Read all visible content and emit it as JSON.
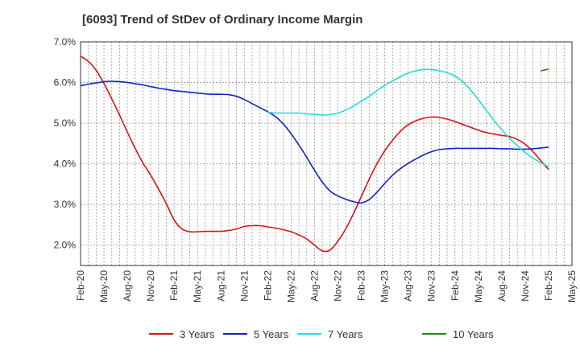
{
  "chart_data": {
    "type": "line",
    "title": "[6093]  Trend of StDev of Ordinary Income Margin",
    "xlabel": "",
    "ylabel": "",
    "x_tick_labels": [
      "Feb-20",
      "May-20",
      "Aug-20",
      "Nov-20",
      "Feb-21",
      "May-21",
      "Aug-21",
      "Nov-21",
      "Feb-22",
      "May-22",
      "Aug-22",
      "Nov-22",
      "Feb-23",
      "May-23",
      "Aug-23",
      "Nov-23",
      "Feb-24",
      "May-24",
      "Aug-24",
      "Nov-24",
      "Feb-25",
      "May-25"
    ],
    "y_tick_labels": [
      "2.0%",
      "3.0%",
      "4.0%",
      "5.0%",
      "6.0%",
      "7.0%"
    ],
    "y_ticks": [
      2.0,
      3.0,
      4.0,
      5.0,
      6.0,
      7.0
    ],
    "ylim": [
      1.5,
      7.0
    ],
    "grid": true,
    "legend_position": "bottom",
    "series": [
      {
        "name": "3 Years",
        "color": "#dd1111",
        "points": [
          [
            "2020-02",
            6.65
          ],
          [
            "2020-03",
            6.52
          ],
          [
            "2020-04",
            6.3
          ],
          [
            "2020-05",
            5.98
          ],
          [
            "2020-06",
            5.6
          ],
          [
            "2020-07",
            5.2
          ],
          [
            "2020-08",
            4.78
          ],
          [
            "2020-09",
            4.38
          ],
          [
            "2020-10",
            4.02
          ],
          [
            "2020-11",
            3.72
          ],
          [
            "2020-12",
            3.38
          ],
          [
            "2021-01",
            3.02
          ],
          [
            "2021-02",
            2.62
          ],
          [
            "2021-03",
            2.4
          ],
          [
            "2021-04",
            2.33
          ],
          [
            "2021-05",
            2.33
          ],
          [
            "2021-06",
            2.34
          ],
          [
            "2021-07",
            2.34
          ],
          [
            "2021-08",
            2.34
          ],
          [
            "2021-09",
            2.36
          ],
          [
            "2021-10",
            2.4
          ],
          [
            "2021-11",
            2.46
          ],
          [
            "2021-12",
            2.48
          ],
          [
            "2022-01",
            2.48
          ],
          [
            "2022-02",
            2.45
          ],
          [
            "2022-03",
            2.42
          ],
          [
            "2022-04",
            2.38
          ],
          [
            "2022-05",
            2.33
          ],
          [
            "2022-06",
            2.25
          ],
          [
            "2022-07",
            2.15
          ],
          [
            "2022-08",
            2.0
          ],
          [
            "2022-09",
            1.86
          ],
          [
            "2022-10",
            1.88
          ],
          [
            "2022-11",
            2.1
          ],
          [
            "2022-12",
            2.4
          ],
          [
            "2023-01",
            2.78
          ],
          [
            "2023-02",
            3.2
          ],
          [
            "2023-03",
            3.62
          ],
          [
            "2023-04",
            4.0
          ],
          [
            "2023-05",
            4.32
          ],
          [
            "2023-06",
            4.58
          ],
          [
            "2023-07",
            4.8
          ],
          [
            "2023-08",
            4.96
          ],
          [
            "2023-09",
            5.06
          ],
          [
            "2023-10",
            5.12
          ],
          [
            "2023-11",
            5.15
          ],
          [
            "2023-12",
            5.14
          ],
          [
            "2024-01",
            5.1
          ],
          [
            "2024-02",
            5.04
          ],
          [
            "2024-03",
            4.97
          ],
          [
            "2024-04",
            4.9
          ],
          [
            "2024-05",
            4.83
          ],
          [
            "2024-06",
            4.77
          ],
          [
            "2024-07",
            4.73
          ],
          [
            "2024-08",
            4.7
          ],
          [
            "2024-09",
            4.67
          ],
          [
            "2024-10",
            4.6
          ],
          [
            "2024-11",
            4.48
          ],
          [
            "2024-12",
            4.3
          ],
          [
            "2025-01",
            4.08
          ],
          [
            "2025-02",
            3.86
          ]
        ]
      },
      {
        "name": "5 Years",
        "color": "#1122cc",
        "points": [
          [
            "2020-02",
            5.92
          ],
          [
            "2020-03",
            5.96
          ],
          [
            "2020-04",
            5.99
          ],
          [
            "2020-05",
            6.02
          ],
          [
            "2020-06",
            6.03
          ],
          [
            "2020-07",
            6.02
          ],
          [
            "2020-08",
            6.0
          ],
          [
            "2020-09",
            5.97
          ],
          [
            "2020-10",
            5.94
          ],
          [
            "2020-11",
            5.9
          ],
          [
            "2020-12",
            5.86
          ],
          [
            "2021-01",
            5.83
          ],
          [
            "2021-02",
            5.8
          ],
          [
            "2021-03",
            5.78
          ],
          [
            "2021-04",
            5.76
          ],
          [
            "2021-05",
            5.74
          ],
          [
            "2021-06",
            5.72
          ],
          [
            "2021-07",
            5.71
          ],
          [
            "2021-08",
            5.71
          ],
          [
            "2021-09",
            5.7
          ],
          [
            "2021-10",
            5.66
          ],
          [
            "2021-11",
            5.58
          ],
          [
            "2021-12",
            5.48
          ],
          [
            "2022-01",
            5.38
          ],
          [
            "2022-02",
            5.28
          ],
          [
            "2022-03",
            5.16
          ],
          [
            "2022-04",
            4.98
          ],
          [
            "2022-05",
            4.74
          ],
          [
            "2022-06",
            4.46
          ],
          [
            "2022-07",
            4.16
          ],
          [
            "2022-08",
            3.84
          ],
          [
            "2022-09",
            3.55
          ],
          [
            "2022-10",
            3.33
          ],
          [
            "2022-11",
            3.21
          ],
          [
            "2022-12",
            3.13
          ],
          [
            "2023-01",
            3.07
          ],
          [
            "2023-02",
            3.04
          ],
          [
            "2023-03",
            3.12
          ],
          [
            "2023-04",
            3.3
          ],
          [
            "2023-05",
            3.52
          ],
          [
            "2023-06",
            3.72
          ],
          [
            "2023-07",
            3.88
          ],
          [
            "2023-08",
            4.01
          ],
          [
            "2023-09",
            4.12
          ],
          [
            "2023-10",
            4.22
          ],
          [
            "2023-11",
            4.3
          ],
          [
            "2023-12",
            4.35
          ],
          [
            "2024-01",
            4.37
          ],
          [
            "2024-02",
            4.38
          ],
          [
            "2024-03",
            4.38
          ],
          [
            "2024-04",
            4.38
          ],
          [
            "2024-05",
            4.38
          ],
          [
            "2024-06",
            4.38
          ],
          [
            "2024-07",
            4.38
          ],
          [
            "2024-08",
            4.37
          ],
          [
            "2024-09",
            4.37
          ],
          [
            "2024-10",
            4.36
          ],
          [
            "2024-11",
            4.36
          ],
          [
            "2024-12",
            4.37
          ],
          [
            "2025-01",
            4.39
          ],
          [
            "2025-02",
            4.41
          ]
        ]
      },
      {
        "name": "7 Years",
        "color": "#22dddd",
        "points": [
          [
            "2022-02",
            5.27
          ],
          [
            "2022-03",
            5.25
          ],
          [
            "2022-04",
            5.25
          ],
          [
            "2022-05",
            5.25
          ],
          [
            "2022-06",
            5.25
          ],
          [
            "2022-07",
            5.23
          ],
          [
            "2022-08",
            5.22
          ],
          [
            "2022-09",
            5.2
          ],
          [
            "2022-10",
            5.21
          ],
          [
            "2022-11",
            5.25
          ],
          [
            "2022-12",
            5.32
          ],
          [
            "2023-01",
            5.42
          ],
          [
            "2023-02",
            5.54
          ],
          [
            "2023-03",
            5.66
          ],
          [
            "2023-04",
            5.8
          ],
          [
            "2023-05",
            5.93
          ],
          [
            "2023-06",
            6.04
          ],
          [
            "2023-07",
            6.14
          ],
          [
            "2023-08",
            6.23
          ],
          [
            "2023-09",
            6.29
          ],
          [
            "2023-10",
            6.32
          ],
          [
            "2023-11",
            6.32
          ],
          [
            "2023-12",
            6.29
          ],
          [
            "2024-01",
            6.24
          ],
          [
            "2024-02",
            6.16
          ],
          [
            "2024-03",
            6.02
          ],
          [
            "2024-04",
            5.82
          ],
          [
            "2024-05",
            5.58
          ],
          [
            "2024-06",
            5.32
          ],
          [
            "2024-07",
            5.07
          ],
          [
            "2024-08",
            4.84
          ],
          [
            "2024-09",
            4.63
          ],
          [
            "2024-10",
            4.45
          ],
          [
            "2024-11",
            4.28
          ],
          [
            "2024-12",
            4.14
          ],
          [
            "2025-01",
            4.03
          ],
          [
            "2025-02",
            3.93
          ]
        ]
      },
      {
        "name": "10 Years",
        "color": "#228822",
        "points": [
          [
            "2025-01",
            6.29
          ],
          [
            "2025-02",
            6.33
          ]
        ]
      }
    ]
  }
}
